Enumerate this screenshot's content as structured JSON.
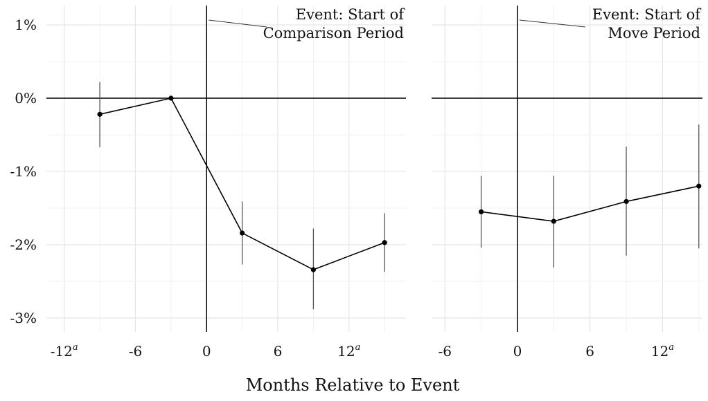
{
  "chart_data": {
    "type": "line",
    "xlabel": "Months Relative to Event",
    "ylabel": "",
    "y_ticks": [
      {
        "value": 1,
        "label": "1%"
      },
      {
        "value": 0,
        "label": "0%"
      },
      {
        "value": -1,
        "label": "-1%"
      },
      {
        "value": -2,
        "label": "-2%"
      },
      {
        "value": -3,
        "label": "-3%"
      }
    ],
    "ylim": [
      -3.2,
      1.3
    ],
    "grid": true,
    "panels": [
      {
        "annotation": [
          "Event: Start of",
          "Comparison Period"
        ],
        "xlim": [
          -13.5,
          16.8
        ],
        "x_ticks": [
          {
            "value": -12,
            "label": "-12",
            "sup": "a"
          },
          {
            "value": -6,
            "label": "-6",
            "sup": ""
          },
          {
            "value": 0,
            "label": "0",
            "sup": ""
          },
          {
            "value": 6,
            "label": "6",
            "sup": ""
          },
          {
            "value": 12,
            "label": "12",
            "sup": "a"
          }
        ],
        "x": [
          -9,
          -3,
          3,
          9,
          15
        ],
        "y": [
          -0.22,
          0.0,
          -1.84,
          -2.34,
          -1.97
        ],
        "ci_low": [
          -0.67,
          0.0,
          -2.27,
          -2.88,
          -2.37
        ],
        "ci_high": [
          0.22,
          0.0,
          -1.41,
          -1.78,
          -1.57
        ]
      },
      {
        "annotation": [
          "Event: Start of",
          "Move Period"
        ],
        "xlim": [
          -7.1,
          15.3
        ],
        "x_ticks": [
          {
            "value": -6,
            "label": "-6",
            "sup": ""
          },
          {
            "value": 0,
            "label": "0",
            "sup": ""
          },
          {
            "value": 6,
            "label": "6",
            "sup": ""
          },
          {
            "value": 12,
            "label": "12",
            "sup": "a"
          }
        ],
        "x": [
          -3,
          3,
          9,
          15
        ],
        "y": [
          -1.55,
          -1.68,
          -1.41,
          -1.2
        ],
        "ci_low": [
          -2.04,
          -2.31,
          -2.15,
          -2.05
        ],
        "ci_high": [
          -1.06,
          -1.06,
          -0.66,
          -0.36
        ]
      }
    ]
  }
}
